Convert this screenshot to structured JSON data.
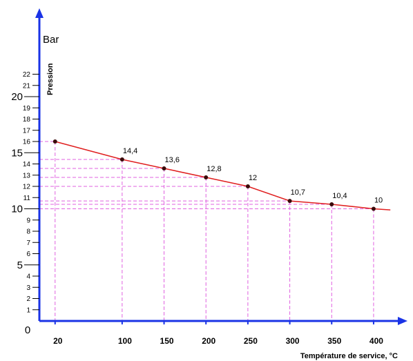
{
  "chart_data": {
    "type": "line",
    "x": [
      20,
      100,
      150,
      200,
      250,
      300,
      350,
      400
    ],
    "series": [
      {
        "values": [
          16,
          14.4,
          13.6,
          12.8,
          12,
          10.7,
          10.4,
          10
        ]
      }
    ],
    "data_labels": [
      "",
      "14,4",
      "13,6",
      "12,8",
      "12",
      "10,7",
      "10,4",
      "10"
    ],
    "x_tick_labels": [
      "20",
      "100",
      "150",
      "200",
      "250",
      "300",
      "350",
      "400"
    ],
    "y_minor_ticks": [
      1,
      2,
      3,
      4,
      6,
      7,
      8,
      9,
      11,
      12,
      13,
      14,
      16,
      17,
      18,
      19,
      21,
      22
    ],
    "y_major_ticks": [
      0,
      5,
      10,
      15,
      20
    ],
    "xlabel": "Température de service, °C",
    "ylabel": "Pression",
    "y_unit": "Bar",
    "ylim": [
      0,
      22
    ],
    "line_extends_to_x": 420,
    "line_extends_to_y": 9.9,
    "grid": "dashed guides from each point to both axes",
    "colors": {
      "axis": "#1a33e6",
      "line": "#e02020",
      "guides": "#e060e0",
      "points": "#3a0a0a"
    }
  }
}
